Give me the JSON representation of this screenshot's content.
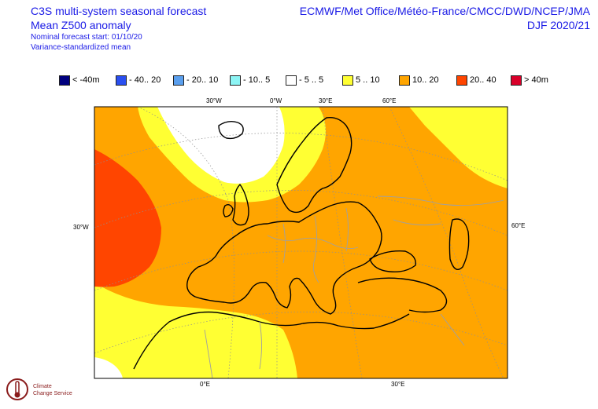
{
  "header": {
    "title_line1": "C3S multi-system seasonal forecast",
    "title_line2": "Mean Z500 anomaly",
    "nominal_start": "Nominal forecast start: 01/10/20",
    "variance_note": "Variance-standardized mean",
    "centres": "ECMWF/Met Office/Météo-France/CMCC/DWD/NCEP/JMA",
    "season": "DJF 2020/21"
  },
  "legend": [
    {
      "label": "< -40m",
      "color": "#00007f"
    },
    {
      "label": "- 40.. 20",
      "color": "#2a4ff0"
    },
    {
      "label": "- 20.. 10",
      "color": "#5a9fee"
    },
    {
      "label": "- 10.. 5",
      "color": "#8cf4f4"
    },
    {
      "label": "- 5 .. 5",
      "color": "#ffffff"
    },
    {
      "label": "5 .. 10",
      "color": "#ffff33"
    },
    {
      "label": "10.. 20",
      "color": "#ffa500"
    },
    {
      "label": "20.. 40",
      "color": "#ff4500"
    },
    {
      "label": "> 40m",
      "color": "#d9002a"
    }
  ],
  "axes": {
    "top": [
      "30°W",
      "0°W",
      "30°E",
      "60°E"
    ],
    "left": "30°W",
    "right": "60°E",
    "bottom": [
      "0°E",
      "30°E"
    ]
  },
  "colors": {
    "white": "#ffffff",
    "yellow": "#ffff33",
    "orange": "#ffa500",
    "red": "#ff4500",
    "coast": "#000000",
    "border": "#a0a0a0",
    "grid": "#909090",
    "title": "#1a1ae6"
  },
  "logo": {
    "line1": "Climate",
    "line2": "Change Service"
  }
}
